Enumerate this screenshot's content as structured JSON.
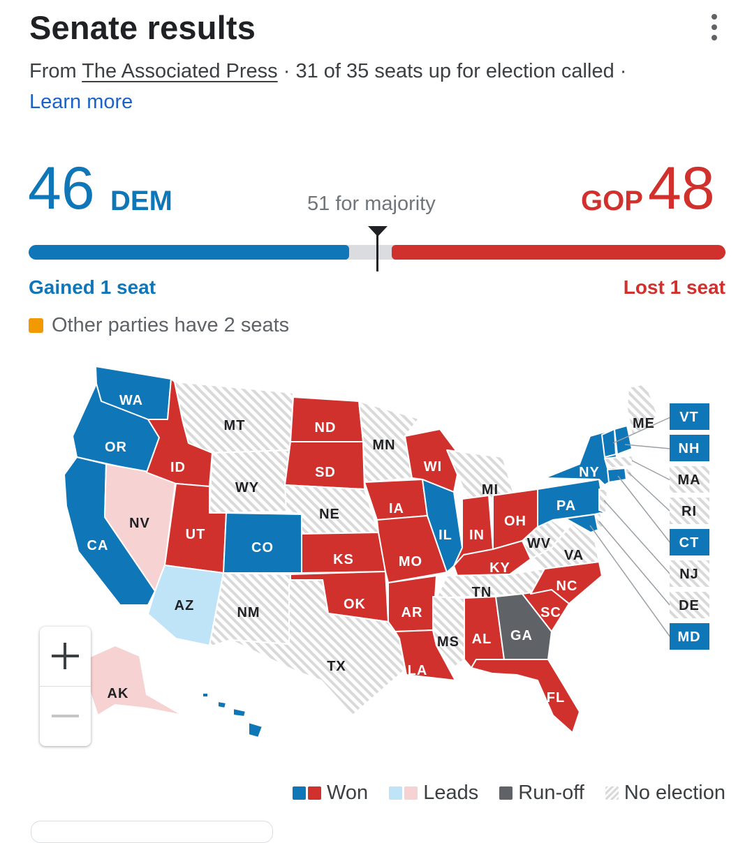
{
  "header": {
    "title": "Senate results",
    "source_prefix": "From ",
    "source_link": "The Associated Press",
    "status": " · 31 of 35 seats up for election called · ",
    "learn_more": "Learn more"
  },
  "tally": {
    "dem_seats": "46",
    "dem_label": "DEM",
    "gop_label": "GOP",
    "gop_seats": "48",
    "majority_text": "51 for majority",
    "dem_change": "Gained 1 seat",
    "gop_change": "Lost 1 seat",
    "other_text": "Other parties have 2 seats",
    "dem_share": 0.46,
    "gop_share": 0.48,
    "majority_threshold": 51,
    "total_seats": 100
  },
  "colors": {
    "dem_won": "#0f76b8",
    "gop_won": "#d0312d",
    "dem_leads": "#bfe3f7",
    "gop_leads": "#f7d2d2",
    "runoff": "#5f6368",
    "other": "#f29900",
    "no_election": "#d9d9d9"
  },
  "map": {
    "states": [
      {
        "abbr": "WA",
        "status": "dem-won"
      },
      {
        "abbr": "OR",
        "status": "dem-won"
      },
      {
        "abbr": "CA",
        "status": "dem-won"
      },
      {
        "abbr": "NV",
        "status": "dem-leads"
      },
      {
        "abbr": "ID",
        "status": "gop-won"
      },
      {
        "abbr": "MT",
        "status": "no-election"
      },
      {
        "abbr": "WY",
        "status": "no-election"
      },
      {
        "abbr": "UT",
        "status": "gop-won"
      },
      {
        "abbr": "AZ",
        "status": "dem-leads"
      },
      {
        "abbr": "CO",
        "status": "dem-won"
      },
      {
        "abbr": "NM",
        "status": "no-election"
      },
      {
        "abbr": "ND",
        "status": "gop-won"
      },
      {
        "abbr": "SD",
        "status": "gop-won"
      },
      {
        "abbr": "NE",
        "status": "no-election"
      },
      {
        "abbr": "KS",
        "status": "gop-won"
      },
      {
        "abbr": "OK",
        "status": "gop-won"
      },
      {
        "abbr": "TX",
        "status": "no-election"
      },
      {
        "abbr": "MN",
        "status": "no-election"
      },
      {
        "abbr": "IA",
        "status": "gop-won"
      },
      {
        "abbr": "MO",
        "status": "gop-won"
      },
      {
        "abbr": "AR",
        "status": "gop-won"
      },
      {
        "abbr": "LA",
        "status": "gop-won"
      },
      {
        "abbr": "WI",
        "status": "gop-won"
      },
      {
        "abbr": "IL",
        "status": "dem-won"
      },
      {
        "abbr": "MI",
        "status": "no-election"
      },
      {
        "abbr": "IN",
        "status": "gop-won"
      },
      {
        "abbr": "OH",
        "status": "gop-won"
      },
      {
        "abbr": "KY",
        "status": "gop-won"
      },
      {
        "abbr": "TN",
        "status": "no-election"
      },
      {
        "abbr": "MS",
        "status": "no-election"
      },
      {
        "abbr": "AL",
        "status": "gop-won"
      },
      {
        "abbr": "GA",
        "status": "runoff"
      },
      {
        "abbr": "FL",
        "status": "gop-won"
      },
      {
        "abbr": "SC",
        "status": "gop-won"
      },
      {
        "abbr": "NC",
        "status": "gop-won"
      },
      {
        "abbr": "WV",
        "status": "no-election"
      },
      {
        "abbr": "VA",
        "status": "no-election"
      },
      {
        "abbr": "PA",
        "status": "dem-won"
      },
      {
        "abbr": "NY",
        "status": "dem-won"
      },
      {
        "abbr": "ME",
        "status": "no-election"
      },
      {
        "abbr": "AK",
        "status": "gop-leads"
      },
      {
        "abbr": "HI",
        "status": "dem-won"
      }
    ],
    "callouts": [
      {
        "abbr": "VT",
        "status": "dem-won"
      },
      {
        "abbr": "NH",
        "status": "dem-won"
      },
      {
        "abbr": "MA",
        "status": "no-election"
      },
      {
        "abbr": "RI",
        "status": "no-election"
      },
      {
        "abbr": "CT",
        "status": "dem-won"
      },
      {
        "abbr": "NJ",
        "status": "no-election"
      },
      {
        "abbr": "DE",
        "status": "no-election"
      },
      {
        "abbr": "MD",
        "status": "dem-won"
      }
    ]
  },
  "zoom": {
    "in_icon": "plus-icon",
    "out_icon": "minus-icon"
  },
  "legend": {
    "won": "Won",
    "leads": "Leads",
    "runoff": "Run-off",
    "no_election": "No election"
  }
}
